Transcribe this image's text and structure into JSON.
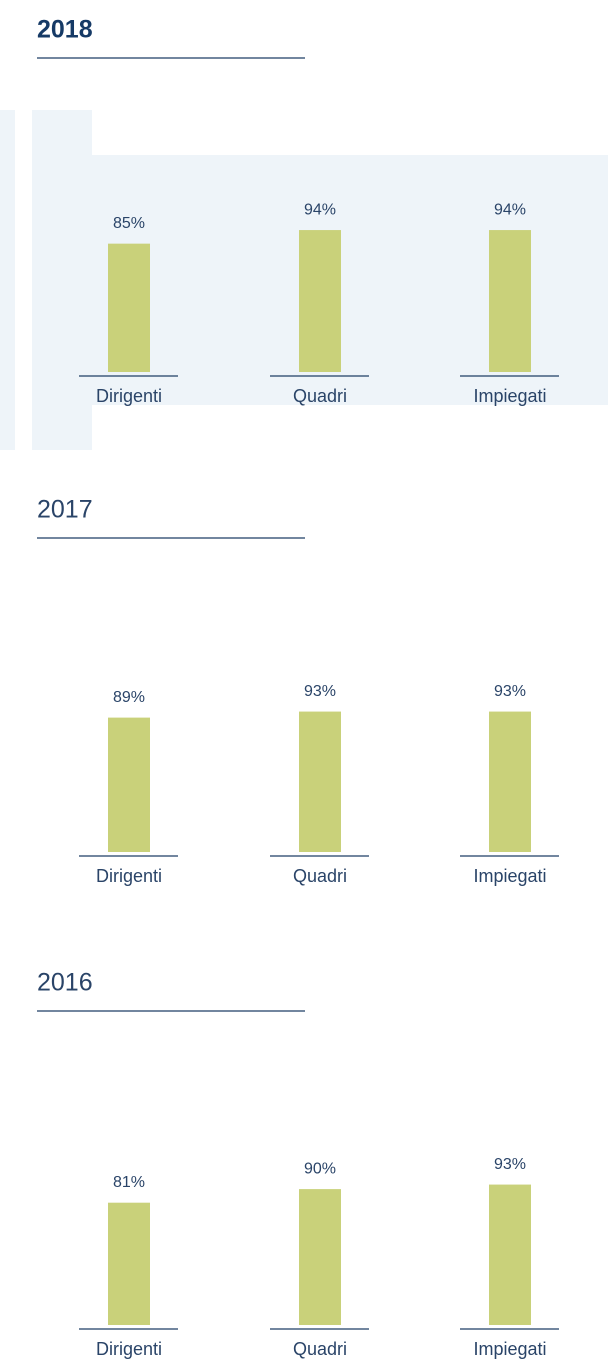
{
  "chart_data": [
    {
      "type": "bar",
      "title": "2018",
      "categories": [
        "Dirigenti",
        "Quadri",
        "Impiegati"
      ],
      "values": [
        85,
        94,
        94
      ],
      "value_labels": [
        "85%",
        "94%",
        "94%"
      ],
      "color": "#c9d17a"
    },
    {
      "type": "bar",
      "title": "2017",
      "categories": [
        "Dirigenti",
        "Quadri",
        "Impiegati"
      ],
      "values": [
        89,
        93,
        93
      ],
      "value_labels": [
        "89%",
        "93%",
        "93%"
      ],
      "color": "#c9d17a"
    },
    {
      "type": "bar",
      "title": "2016",
      "categories": [
        "Dirigenti",
        "Quadri",
        "Impiegati"
      ],
      "values": [
        81,
        90,
        93
      ],
      "value_labels": [
        "81%",
        "90%",
        "93%"
      ],
      "color": "#c9d17a"
    }
  ]
}
